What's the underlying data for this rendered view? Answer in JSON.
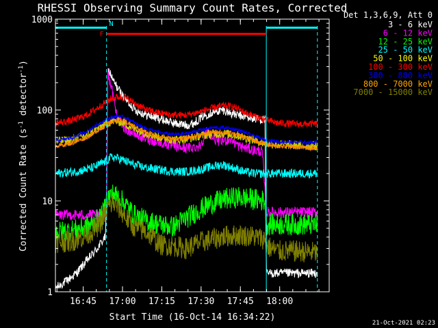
{
  "chart_data": {
    "type": "line",
    "title": "RHESSI Observing Summary Count Rates, Corrected",
    "xlabel": "Start Time (16-Oct-14 16:34:22)",
    "ylabel_main": "Corrected Count Rate (s",
    "ylabel_sup1": "-1",
    "ylabel_mid": " detector",
    "ylabel_sup2": "-1",
    "ylabel_end": ")",
    "yscale": "log",
    "x_range_min": [
      0,
      104.5
    ],
    "ylim": [
      1,
      1000
    ],
    "x_ticks": [
      {
        "label": "16:45",
        "t": 10.6
      },
      {
        "label": "17:00",
        "t": 25.6
      },
      {
        "label": "17:15",
        "t": 40.6
      },
      {
        "label": "17:30",
        "t": 55.6
      },
      {
        "label": "17:45",
        "t": 70.6
      },
      {
        "label": "18:00",
        "t": 85.6
      }
    ],
    "y_ticks": [
      {
        "label": "1",
        "v": 1
      },
      {
        "label": "10",
        "v": 10
      },
      {
        "label": "100",
        "v": 100
      },
      {
        "label": "1000",
        "v": 1000
      }
    ],
    "legend_header": "Det 1,3,6,9, Att 0",
    "footer_date": "21-Oct-2021 02:23",
    "flags": [
      {
        "label": "F",
        "color": "#ff0000",
        "start": 19.5,
        "end": 80.5,
        "level": "upper"
      },
      {
        "label": "N",
        "color": "#00ffff",
        "start": 19.5,
        "end": 19.5,
        "level": "top"
      }
    ],
    "night_bars": [
      {
        "start": 0,
        "end": 19.5
      },
      {
        "start": 80.5,
        "end": 100
      }
    ],
    "markers": [
      {
        "kind": "dashed",
        "t": 19.5
      },
      {
        "kind": "solid",
        "t": 80.5
      },
      {
        "kind": "dashed",
        "t": 100
      }
    ],
    "series": [
      {
        "name": "3 - 6 keV",
        "color": "#ffffff",
        "plotcolor": "#ffffff",
        "points": [
          [
            0,
            1.1
          ],
          [
            4,
            1.3
          ],
          [
            8,
            1.6
          ],
          [
            12,
            2.2
          ],
          [
            16,
            3.0
          ],
          [
            19,
            4.0
          ],
          [
            19.5,
            8
          ],
          [
            20,
            280
          ],
          [
            21,
            250
          ],
          [
            22,
            210
          ],
          [
            24,
            170
          ],
          [
            26,
            140
          ],
          [
            28,
            120
          ],
          [
            31,
            98
          ],
          [
            35,
            88
          ],
          [
            40,
            80
          ],
          [
            45,
            72
          ],
          [
            50,
            68
          ],
          [
            53,
            72
          ],
          [
            56,
            85
          ],
          [
            60,
            95
          ],
          [
            64,
            100
          ],
          [
            68,
            90
          ],
          [
            72,
            85
          ],
          [
            76,
            80
          ],
          [
            80,
            78
          ],
          [
            80.5,
            1.6
          ],
          [
            82,
            1.6
          ],
          [
            88,
            1.6
          ],
          [
            94,
            1.6
          ],
          [
            100,
            1.6
          ]
        ],
        "noise": 0.05
      },
      {
        "name": "6 - 12 keV",
        "color": "#ff00ff",
        "plotcolor": "#ff00ff",
        "points": [
          [
            0,
            7
          ],
          [
            10,
            7
          ],
          [
            18,
            7
          ],
          [
            19.5,
            7
          ],
          [
            20,
            250
          ],
          [
            21,
            200
          ],
          [
            22,
            150
          ],
          [
            23,
            100
          ],
          [
            24,
            80
          ],
          [
            26,
            65
          ],
          [
            30,
            55
          ],
          [
            35,
            48
          ],
          [
            40,
            44
          ],
          [
            45,
            40
          ],
          [
            50,
            38
          ],
          [
            55,
            40
          ],
          [
            58,
            60
          ],
          [
            60,
            50
          ],
          [
            63,
            45
          ],
          [
            67,
            48
          ],
          [
            70,
            40
          ],
          [
            73,
            38
          ],
          [
            76,
            36
          ],
          [
            79,
            35
          ],
          [
            80.5,
            7.5
          ],
          [
            85,
            7.5
          ],
          [
            94,
            7.5
          ],
          [
            100,
            7.5
          ]
        ],
        "noise": 0.06
      },
      {
        "name": "12 - 25 keV",
        "color": "#00ff00",
        "plotcolor": "#00ff00",
        "points": [
          [
            0,
            4.5
          ],
          [
            8,
            4.8
          ],
          [
            14,
            5.5
          ],
          [
            18,
            7
          ],
          [
            20,
            11
          ],
          [
            22,
            12
          ],
          [
            24,
            11
          ],
          [
            27,
            9
          ],
          [
            30,
            7
          ],
          [
            35,
            6
          ],
          [
            40,
            5.5
          ],
          [
            45,
            5.2
          ],
          [
            50,
            6.5
          ],
          [
            55,
            8
          ],
          [
            60,
            9.5
          ],
          [
            65,
            10.5
          ],
          [
            70,
            11
          ],
          [
            75,
            10.5
          ],
          [
            80,
            10
          ],
          [
            80.5,
            5.5
          ],
          [
            86,
            5.5
          ],
          [
            94,
            5.5
          ],
          [
            100,
            5.5
          ]
        ],
        "noise": 0.12
      },
      {
        "name": "25 - 50 keV",
        "color": "#00ffff",
        "plotcolor": "#00ffff",
        "points": [
          [
            0,
            20
          ],
          [
            8,
            21
          ],
          [
            14,
            23
          ],
          [
            19,
            27
          ],
          [
            21,
            30
          ],
          [
            23,
            30
          ],
          [
            26,
            28
          ],
          [
            30,
            25
          ],
          [
            35,
            23
          ],
          [
            40,
            22
          ],
          [
            45,
            21
          ],
          [
            50,
            21
          ],
          [
            55,
            22
          ],
          [
            60,
            24
          ],
          [
            64,
            25
          ],
          [
            68,
            23
          ],
          [
            72,
            21
          ],
          [
            76,
            20
          ],
          [
            80,
            20
          ],
          [
            85,
            20
          ],
          [
            92,
            20
          ],
          [
            100,
            20
          ]
        ],
        "noise": 0.05
      },
      {
        "name": "50 - 100 keV",
        "color": "#ffff00",
        "plotcolor": "#cccc00",
        "points": [
          [
            0,
            45
          ],
          [
            6,
            47
          ],
          [
            12,
            53
          ],
          [
            16,
            62
          ],
          [
            20,
            72
          ],
          [
            22,
            76
          ],
          [
            25,
            74
          ],
          [
            30,
            63
          ],
          [
            35,
            55
          ],
          [
            40,
            50
          ],
          [
            45,
            47
          ],
          [
            50,
            48
          ],
          [
            55,
            52
          ],
          [
            60,
            55
          ],
          [
            65,
            55
          ],
          [
            70,
            52
          ],
          [
            74,
            48
          ],
          [
            78,
            45
          ],
          [
            80,
            43
          ],
          [
            85,
            42
          ],
          [
            92,
            41
          ],
          [
            100,
            40
          ]
        ],
        "noise": 0.05
      },
      {
        "name": "100 - 300 keV",
        "color": "#ff0000",
        "plotcolor": "#ff0000",
        "points": [
          [
            0,
            72
          ],
          [
            6,
            76
          ],
          [
            12,
            88
          ],
          [
            17,
            110
          ],
          [
            21,
            132
          ],
          [
            24,
            140
          ],
          [
            27,
            135
          ],
          [
            31,
            115
          ],
          [
            35,
            100
          ],
          [
            40,
            92
          ],
          [
            45,
            88
          ],
          [
            50,
            88
          ],
          [
            55,
            95
          ],
          [
            60,
            105
          ],
          [
            64,
            112
          ],
          [
            68,
            108
          ],
          [
            72,
            95
          ],
          [
            76,
            85
          ],
          [
            80,
            78
          ],
          [
            85,
            72
          ],
          [
            92,
            70
          ],
          [
            100,
            70
          ]
        ],
        "noise": 0.04
      },
      {
        "name": "300 - 800 keV",
        "color": "#0000ff",
        "plotcolor": "#0000ff",
        "points": [
          [
            0,
            46
          ],
          [
            6,
            49
          ],
          [
            12,
            58
          ],
          [
            17,
            72
          ],
          [
            21,
            82
          ],
          [
            24,
            86
          ],
          [
            27,
            82
          ],
          [
            31,
            70
          ],
          [
            35,
            62
          ],
          [
            40,
            56
          ],
          [
            45,
            54
          ],
          [
            50,
            55
          ],
          [
            55,
            60
          ],
          [
            60,
            64
          ],
          [
            65,
            64
          ],
          [
            70,
            60
          ],
          [
            74,
            54
          ],
          [
            78,
            49
          ],
          [
            80,
            47
          ],
          [
            85,
            45
          ],
          [
            92,
            44
          ],
          [
            100,
            44
          ]
        ],
        "noise": 0.02
      },
      {
        "name": "800 - 7000 keV",
        "color": "#ffa500",
        "plotcolor": "#ff8800",
        "points": [
          [
            0,
            40
          ],
          [
            6,
            43
          ],
          [
            12,
            50
          ],
          [
            17,
            62
          ],
          [
            21,
            73
          ],
          [
            24,
            78
          ],
          [
            27,
            74
          ],
          [
            31,
            64
          ],
          [
            35,
            56
          ],
          [
            40,
            51
          ],
          [
            45,
            48
          ],
          [
            50,
            49
          ],
          [
            55,
            53
          ],
          [
            60,
            57
          ],
          [
            65,
            57
          ],
          [
            70,
            53
          ],
          [
            74,
            48
          ],
          [
            78,
            44
          ],
          [
            80,
            42
          ],
          [
            85,
            40
          ],
          [
            92,
            39
          ],
          [
            100,
            38
          ]
        ],
        "noise": 0.025
      },
      {
        "name": "7000 - 15000 keV",
        "color": "#808000",
        "plotcolor": "#808000",
        "points": [
          [
            0,
            3.5
          ],
          [
            6,
            3.6
          ],
          [
            12,
            4.2
          ],
          [
            17,
            5.5
          ],
          [
            20,
            8.5
          ],
          [
            22,
            9.5
          ],
          [
            24,
            8.5
          ],
          [
            27,
            6.5
          ],
          [
            30,
            5.2
          ],
          [
            35,
            4.5
          ],
          [
            40,
            3.3
          ],
          [
            45,
            3.2
          ],
          [
            50,
            3.0
          ],
          [
            55,
            3.5
          ],
          [
            60,
            3.8
          ],
          [
            65,
            4.1
          ],
          [
            70,
            4.2
          ],
          [
            75,
            4.1
          ],
          [
            80,
            3.8
          ],
          [
            80.5,
            3.2
          ],
          [
            85,
            2.8
          ],
          [
            92,
            2.8
          ],
          [
            100,
            2.7
          ]
        ],
        "noise": 0.12
      }
    ]
  }
}
